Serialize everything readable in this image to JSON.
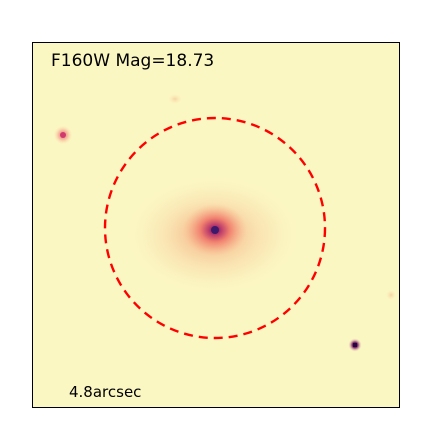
{
  "image": {
    "title": "F160W Mag=18.73",
    "scale_label": "4.8arcsec",
    "colors": {
      "background": "#fbf7c3",
      "galaxy_halo": "#f8c99a",
      "galaxy_core": "#f07f6e",
      "nucleus": "#3b1a6b",
      "aperture_circle": "#ff0000"
    },
    "aperture_style": "dashed-circle"
  }
}
